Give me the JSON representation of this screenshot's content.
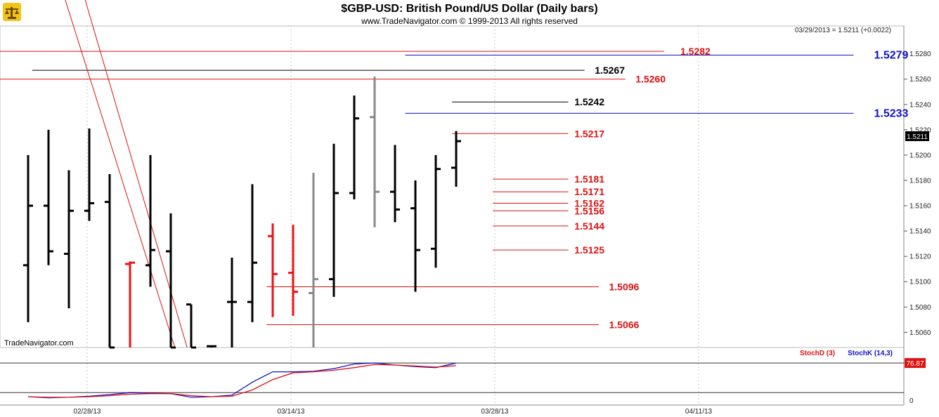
{
  "header": {
    "title": "$GBP-USD:  British Pound/US Dollar  (Daily bars)",
    "copyright": "www.TradeNavigator.com © 1999-2013 All rights reserved",
    "last_quote": "03/29/2013 = 1.5211 (+0.0022)",
    "current_price_tag": "1.5211"
  },
  "watermark": "TradeNavigator.com",
  "logo_icon": "scales-logo-icon",
  "chart_data": [
    {
      "type": "ohlc",
      "title": "$GBP-USD:  British Pound/US Dollar  (Daily bars)",
      "x_tick_labels": [
        {
          "label": "02/28/13",
          "bar": 3
        },
        {
          "label": "03/14/13",
          "bar": 13
        },
        {
          "label": "03/28/13",
          "bar": 23
        },
        {
          "label": "04/11/13",
          "bar": 33
        }
      ],
      "bar_count_axis": 42,
      "y_ticks": [
        1.506,
        1.508,
        1.51,
        1.512,
        1.514,
        1.516,
        1.518,
        1.52,
        1.522,
        1.524,
        1.526,
        1.528
      ],
      "ylim": [
        1.5048,
        1.5302
      ],
      "colors": {
        "up": "#000000",
        "down_key": "#ee1111",
        "inside": "#888888",
        "fib_red": "#dd1111",
        "fib_blue": "#1111cc",
        "black_level": "#000000"
      },
      "bars": [
        {
          "o": 1.5113,
          "h": 1.52,
          "l": 1.5068,
          "c": 1.516,
          "color": "#000000"
        },
        {
          "o": 1.516,
          "h": 1.522,
          "l": 1.5113,
          "c": 1.5124,
          "color": "#000000"
        },
        {
          "o": 1.5122,
          "h": 1.5188,
          "l": 1.5079,
          "c": 1.5156,
          "color": "#000000"
        },
        {
          "o": 1.5156,
          "h": 1.5221,
          "l": 1.5148,
          "c": 1.5162,
          "color": "#000000"
        },
        {
          "o": 1.5163,
          "h": 1.5185,
          "l": 1.5048,
          "c": 1.5048,
          "color": "#000000"
        },
        {
          "o": 1.5114,
          "h": 1.5116,
          "l": 1.5048,
          "c": 1.5115,
          "color": "#ee1111"
        },
        {
          "o": 1.5113,
          "h": 1.52,
          "l": 1.5096,
          "c": 1.5125,
          "color": "#000000"
        },
        {
          "o": 1.5124,
          "h": 1.5154,
          "l": 1.5048,
          "c": 1.5048,
          "color": "#000000"
        },
        {
          "o": 1.5082,
          "h": 1.5082,
          "l": 1.5048,
          "c": 1.5048,
          "color": "#000000"
        },
        {
          "o": 1.5049,
          "h": 1.5049,
          "l": 1.5048,
          "c": 1.5049,
          "color": "#000000"
        },
        {
          "o": 1.5084,
          "h": 1.5119,
          "l": 1.5048,
          "c": 1.5084,
          "color": "#000000"
        },
        {
          "o": 1.5084,
          "h": 1.5177,
          "l": 1.5068,
          "c": 1.5115,
          "color": "#000000"
        },
        {
          "o": 1.5136,
          "h": 1.5146,
          "l": 1.5072,
          "c": 1.5106,
          "color": "#ee1111"
        },
        {
          "o": 1.5107,
          "h": 1.5145,
          "l": 1.5073,
          "c": 1.5092,
          "color": "#ee1111"
        },
        {
          "o": 1.5091,
          "h": 1.5186,
          "l": 1.5048,
          "c": 1.5102,
          "color": "#888888"
        },
        {
          "o": 1.5102,
          "h": 1.5209,
          "l": 1.5088,
          "c": 1.517,
          "color": "#000000"
        },
        {
          "o": 1.517,
          "h": 1.5247,
          "l": 1.5165,
          "c": 1.5229,
          "color": "#000000"
        },
        {
          "o": 1.523,
          "h": 1.5262,
          "l": 1.5143,
          "c": 1.5171,
          "color": "#888888"
        },
        {
          "o": 1.5171,
          "h": 1.5208,
          "l": 1.5147,
          "c": 1.5157,
          "color": "#000000"
        },
        {
          "o": 1.5158,
          "h": 1.518,
          "l": 1.5092,
          "c": 1.5125,
          "color": "#000000"
        },
        {
          "o": 1.5126,
          "h": 1.52,
          "l": 1.5111,
          "c": 1.5189,
          "color": "#000000"
        },
        {
          "o": 1.519,
          "h": 1.5219,
          "l": 1.5175,
          "c": 1.5211,
          "color": "#000000"
        }
      ],
      "trendlines": [
        {
          "x1": 1.5,
          "y1": 1.5339,
          "x2": 7.2,
          "y2": 1.5048
        },
        {
          "x1": 2.5,
          "y1": 1.5339,
          "x2": 7.8,
          "y2": 1.5048
        }
      ],
      "levels": [
        {
          "value": 1.5282,
          "label": "1.5282",
          "color": "#dd1111",
          "from": 0.0,
          "to": 31.2,
          "label_at": 32.0,
          "size": 14
        },
        {
          "value": 1.5279,
          "label": "1.5279",
          "color": "#1111cc",
          "from": 18.5,
          "to": 40.5,
          "label_at": 41.5,
          "size": 16
        },
        {
          "value": 1.5267,
          "label": "1.5267",
          "color": "#000000",
          "from": 0.2,
          "to": 27.3,
          "label_at": 27.8,
          "size": 14
        },
        {
          "value": 1.526,
          "label": "1.5260",
          "color": "#dd1111",
          "from": 0.0,
          "to": 29.3,
          "label_at": 29.8,
          "size": 14
        },
        {
          "value": 1.5242,
          "label": "1.5242",
          "color": "#000000",
          "from": 20.8,
          "to": 26.5,
          "label_at": 26.8,
          "size": 14
        },
        {
          "value": 1.5233,
          "label": "1.5233",
          "color": "#1111cc",
          "from": 18.5,
          "to": 40.5,
          "label_at": 41.5,
          "size": 16
        },
        {
          "value": 1.5217,
          "label": "1.5217",
          "color": "#dd1111",
          "from": 20.8,
          "to": 26.5,
          "label_at": 26.8,
          "size": 14
        },
        {
          "value": 1.5181,
          "label": "1.5181",
          "color": "#dd1111",
          "from": 22.8,
          "to": 26.5,
          "label_at": 26.8,
          "size": 14
        },
        {
          "value": 1.5171,
          "label": "1.5171",
          "color": "#dd1111",
          "from": 22.8,
          "to": 26.5,
          "label_at": 26.8,
          "size": 14
        },
        {
          "value": 1.5162,
          "label": "1.5162",
          "color": "#dd1111",
          "from": 22.8,
          "to": 26.5,
          "label_at": 26.8,
          "size": 14
        },
        {
          "value": 1.5156,
          "label": "1.5156",
          "color": "#dd1111",
          "from": 22.8,
          "to": 26.5,
          "label_at": 26.8,
          "size": 14
        },
        {
          "value": 1.5144,
          "label": "1.5144",
          "color": "#dd1111",
          "from": 22.8,
          "to": 26.5,
          "label_at": 26.8,
          "size": 14
        },
        {
          "value": 1.5125,
          "label": "1.5125",
          "color": "#dd1111",
          "from": 22.8,
          "to": 26.5,
          "label_at": 26.8,
          "size": 14
        },
        {
          "value": 1.5096,
          "label": "1.5096",
          "color": "#dd1111",
          "from": 11.7,
          "to": 28.0,
          "label_at": 28.5,
          "size": 14
        },
        {
          "value": 1.5066,
          "label": "1.5066",
          "color": "#dd1111",
          "from": 11.7,
          "to": 28.0,
          "label_at": 28.5,
          "size": 14
        }
      ]
    },
    {
      "type": "line",
      "legend": [
        {
          "name": "StochD (3)",
          "color": "#dd1111"
        },
        {
          "name": "StochK (14,3)",
          "color": "#1111cc"
        }
      ],
      "legend_placement": "top-right",
      "ylim": [
        0,
        100
      ],
      "y_ticks": [
        0
      ],
      "value_tag": "76.87",
      "upper_line": 76.87,
      "lower_line": 20,
      "series": [
        {
          "name": "StochK (14,3)",
          "color": "#1111cc",
          "x": [
            0,
            1,
            2,
            3,
            4,
            5,
            6,
            7,
            8,
            9,
            10,
            11,
            12,
            13,
            14,
            15,
            16,
            17,
            18,
            19,
            20,
            21
          ],
          "values": [
            12,
            10,
            11,
            13,
            16,
            20,
            19,
            18,
            11,
            12,
            15,
            40,
            60,
            60,
            61,
            66,
            75,
            77,
            73,
            70,
            68,
            76.87
          ]
        },
        {
          "name": "StochD (3)",
          "color": "#dd1111",
          "x": [
            0,
            1,
            2,
            3,
            4,
            5,
            6,
            7,
            8,
            9,
            10,
            11,
            12,
            13,
            14,
            15,
            16,
            17,
            18,
            19,
            20,
            21
          ],
          "values": [
            12,
            11,
            11,
            12,
            14,
            17,
            18,
            18,
            14,
            12,
            13,
            25,
            45,
            58,
            60,
            63,
            68,
            74,
            73,
            71,
            69,
            72
          ]
        }
      ]
    }
  ]
}
